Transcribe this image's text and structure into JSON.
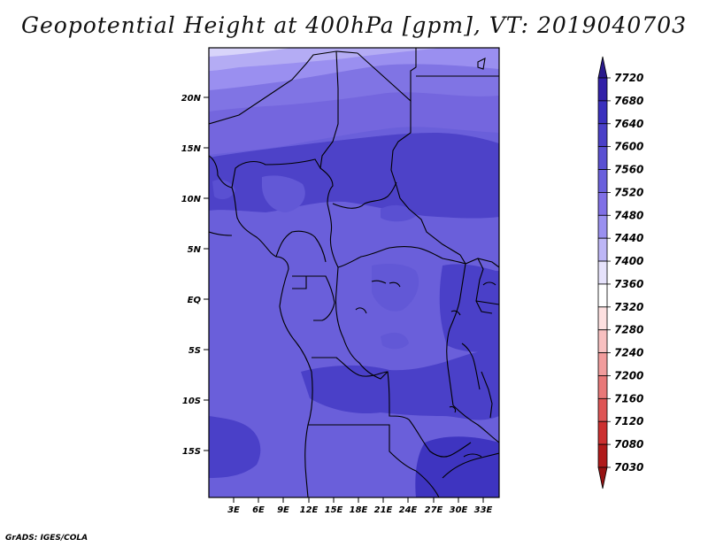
{
  "title": "Geopotential Height at 400hPa [gpm], VT: 2019040703",
  "credit": "GrADS: IGES/COLA",
  "map": {
    "lat_ticks": [
      "20N",
      "15N",
      "10N",
      "5N",
      "EQ",
      "5S",
      "10S",
      "15S"
    ],
    "lon_ticks": [
      "3E",
      "6E",
      "9E",
      "12E",
      "15E",
      "18E",
      "21E",
      "24E",
      "27E",
      "30E",
      "33E"
    ]
  },
  "colorbar": {
    "labels": [
      "7720",
      "7680",
      "7640",
      "7600",
      "7560",
      "7520",
      "7480",
      "7440",
      "7400",
      "7360",
      "7320",
      "7280",
      "7240",
      "7200",
      "7160",
      "7120",
      "7080",
      "7030"
    ],
    "colors": [
      "#2a1a8c",
      "#3220a8",
      "#3a30be",
      "#4a40c8",
      "#5a50d2",
      "#6a60dc",
      "#8070e6",
      "#9a90f0",
      "#bdb6f6",
      "#e6e2fb",
      "#ffffff",
      "#fde0e0",
      "#f8c0c0",
      "#f19c9c",
      "#e87878",
      "#de5555",
      "#cc3030",
      "#b01a1a",
      "#961212"
    ]
  },
  "legend_note": ""
}
